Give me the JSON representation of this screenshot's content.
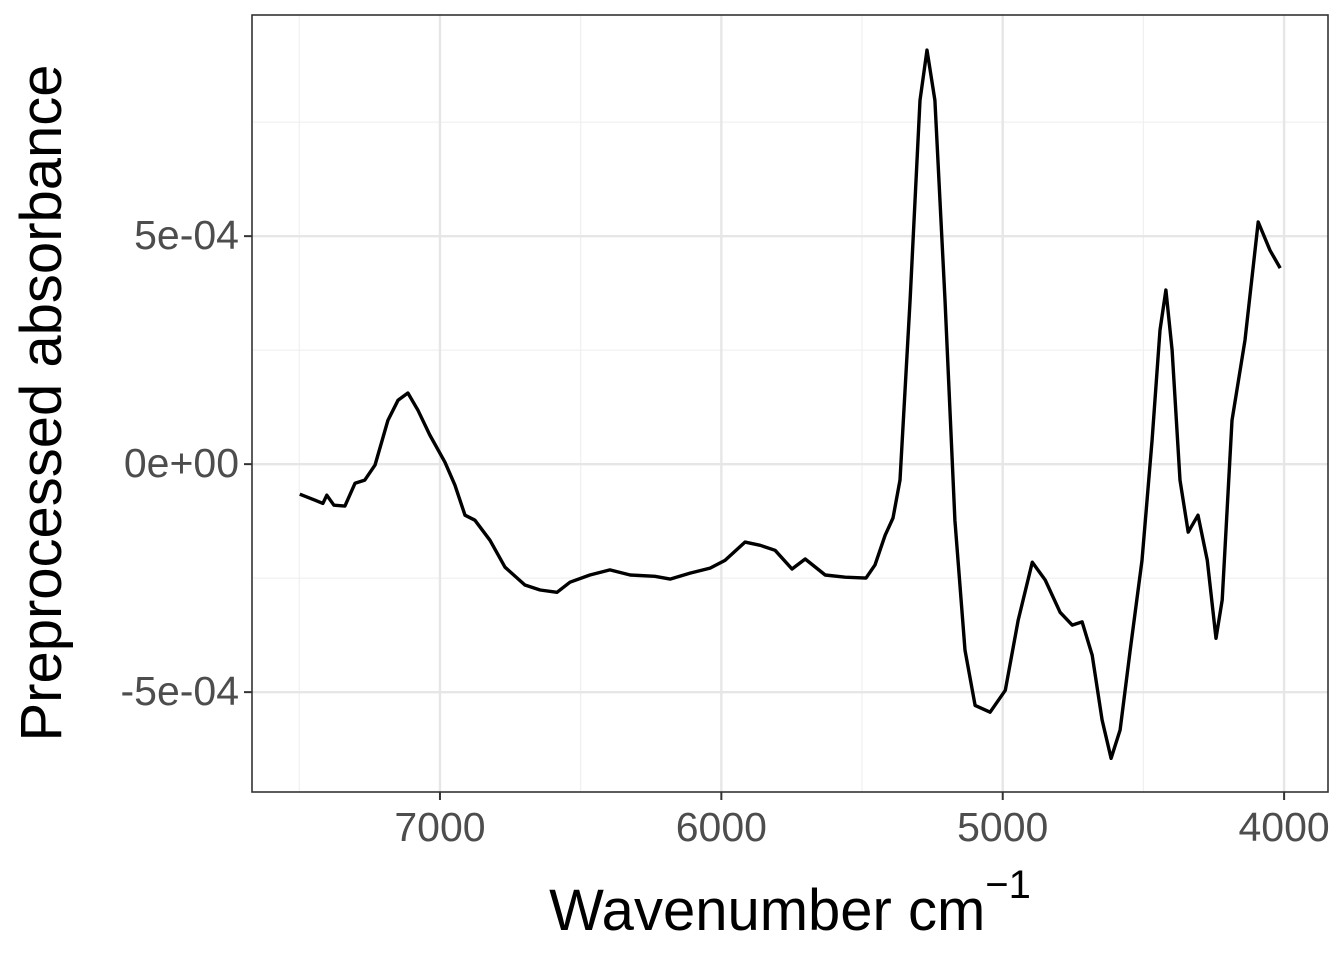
{
  "chart_data": {
    "type": "line",
    "y_label": "Preprocessed absorbance",
    "x_label": {
      "text": "Wavenumber cm",
      "superscript": "−1"
    },
    "x": [
      7498,
      7444,
      7416,
      7402,
      7377,
      7338,
      7302,
      7267,
      7231,
      7185,
      7149,
      7114,
      7078,
      7036,
      6982,
      6947,
      6911,
      6876,
      6822,
      6769,
      6698,
      6644,
      6584,
      6538,
      6467,
      6396,
      6324,
      6236,
      6182,
      6111,
      6040,
      5987,
      5916,
      5862,
      5809,
      5749,
      5702,
      5631,
      5560,
      5486,
      5454,
      5418,
      5390,
      5365,
      5329,
      5294,
      5269,
      5241,
      5205,
      5170,
      5134,
      5098,
      5045,
      4991,
      4945,
      4895,
      4849,
      4796,
      4753,
      4718,
      4682,
      4647,
      4615,
      4583,
      4547,
      4505,
      4469,
      4441,
      4420,
      4398,
      4370,
      4341,
      4306,
      4273,
      4242,
      4220,
      4185,
      4139,
      4092,
      4050,
      4014
    ],
    "values": [
      -6.6e-05,
      -7.9e-05,
      -8.6e-05,
      -6.8e-05,
      -9e-05,
      -9.2e-05,
      -4.2e-05,
      -3.5e-05,
      -2e-06,
      9.6e-05,
      0.00014,
      0.000156,
      0.000118,
      6.4e-05,
      4e-06,
      -4.6e-05,
      -0.000112,
      -0.000123,
      -0.000167,
      -0.000226,
      -0.000265,
      -0.000276,
      -0.000281,
      -0.000259,
      -0.000243,
      -0.000232,
      -0.000243,
      -0.000246,
      -0.000252,
      -0.000239,
      -0.000228,
      -0.000211,
      -0.000171,
      -0.000178,
      -0.000189,
      -0.00023,
      -0.000208,
      -0.000243,
      -0.000248,
      -0.00025,
      -0.000221,
      -0.000156,
      -0.000118,
      -3.5e-05,
      0.00036,
      0.000798,
      0.000908,
      0.000798,
      0.00036,
      -0.000123,
      -0.000408,
      -0.000529,
      -0.000544,
      -0.000496,
      -0.000342,
      -0.000215,
      -0.000254,
      -0.000325,
      -0.000353,
      -0.000346,
      -0.000419,
      -0.000561,
      -0.000645,
      -0.000583,
      -0.000408,
      -0.000211,
      5.3e-05,
      0.000294,
      0.000382,
      0.00025,
      -3.5e-05,
      -0.000149,
      -0.000112,
      -0.000211,
      -0.000382,
      -0.000298,
      9.6e-05,
      0.000272,
      0.000531,
      0.000469,
      0.00043
    ],
    "color": "#000000",
    "xlim": [
      7668,
      3844
    ],
    "ylim": [
      -0.000719,
      0.000985
    ],
    "xticks": [
      7000,
      6000,
      5000,
      4000
    ],
    "yticks": [
      {
        "value": -0.0005,
        "label": "-5e-04"
      },
      {
        "value": 0,
        "label": "0e+00"
      },
      {
        "value": 0.0005,
        "label": "5e-04"
      }
    ],
    "grid": true
  }
}
